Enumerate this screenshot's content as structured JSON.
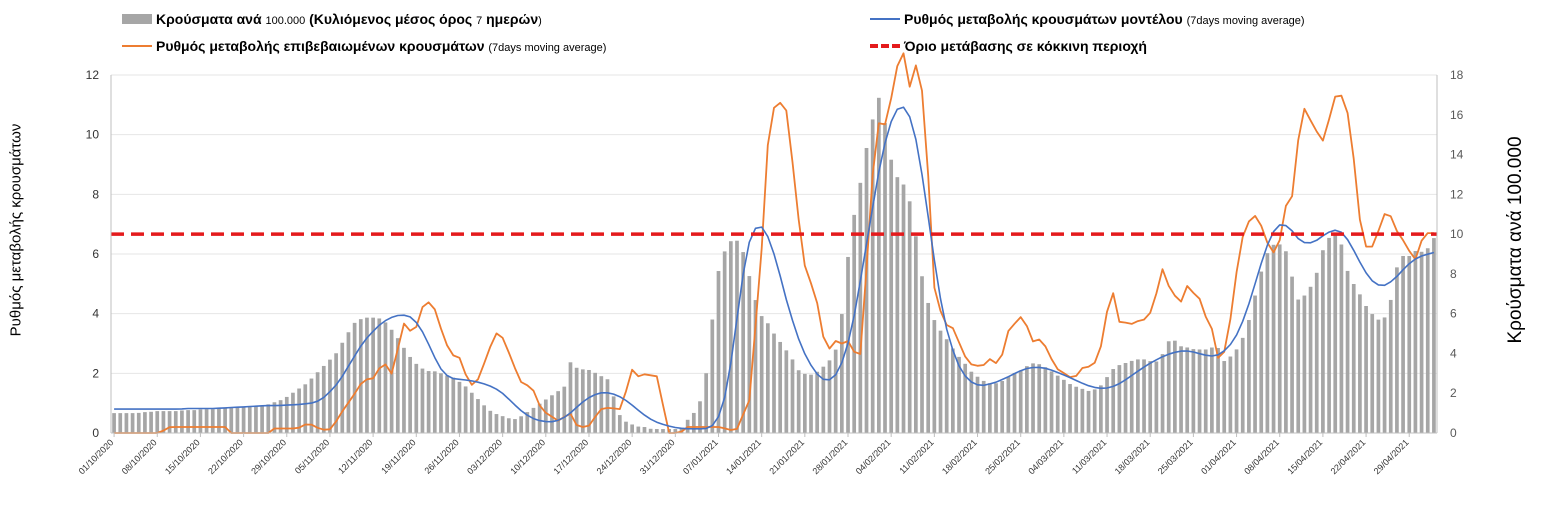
{
  "legend": {
    "bars_main": "Κρούσματα ανά ",
    "bars_small1": "100.000",
    "bars_main2": " (Κυλιόμενος μέσος όρος ",
    "bars_small2": "7",
    "bars_main3": " ημερών",
    "bars_end": ")",
    "model_main": "Ρυθμός μεταβολής κρουσμάτων μοντέλου ",
    "model_small": "(7days moving average)",
    "confirmed_main": "Ρυθμός μεταβολής επιβεβαιωμένων κρουσμάτων ",
    "confirmed_small": "(7days moving average)",
    "threshold": "Όριο μετάβασης σε κόκκινη περιοχή"
  },
  "chart_data": {
    "type": "bar",
    "ylabel": "Ρυθμός μεταβολής κρουσμάτων",
    "y2label": "Κρούσματα ανά 100.000",
    "ylim": [
      0,
      12
    ],
    "y2lim": [
      0,
      18
    ],
    "yticks": [
      "0",
      "2",
      "4",
      "6",
      "8",
      "10",
      "12"
    ],
    "y2ticks": [
      "0",
      "2",
      "4",
      "6",
      "8",
      "10",
      "12",
      "14",
      "16",
      "18"
    ],
    "grid": true,
    "legend_position": "top",
    "colors": {
      "bars": "#a6a6a6",
      "model": "#4472c4",
      "confirmed": "#ed7d31",
      "threshold": "#e41a1c"
    },
    "date_range": [
      "01/10/2020",
      "03/05/2021"
    ],
    "xtick_labels": [
      "01/10/2020",
      "08/10/2020",
      "15/10/2020",
      "22/10/2020",
      "29/10/2020",
      "05/11/2020",
      "12/11/2020",
      "19/11/2020",
      "26/11/2020",
      "03/12/2020",
      "10/12/2020",
      "17/12/2020",
      "24/12/2020",
      "31/12/2020",
      "07/01/2021",
      "14/01/2021",
      "21/01/2021",
      "28/01/2021",
      "04/02/2021",
      "11/02/2021",
      "18/02/2021",
      "25/02/2021",
      "04/03/2021",
      "11/03/2021",
      "18/03/2021",
      "25/03/2021",
      "01/04/2021",
      "08/04/2021",
      "15/04/2021",
      "22/04/2021",
      "29/04/2021"
    ],
    "series": [
      {
        "name": "Κρούσματα ανά 100.000 (Κυλιόμενος μέσος όρος 7 ημερών)",
        "type": "bar",
        "axis": "right",
        "values": [
          1.0,
          1.0,
          1.0,
          1.0,
          1.0,
          1.05,
          1.05,
          1.1,
          1.1,
          1.1,
          1.1,
          1.1,
          1.15,
          1.15,
          1.15,
          1.2,
          1.2,
          1.2,
          1.25,
          1.25,
          1.3,
          1.3,
          1.3,
          1.3,
          1.35,
          1.35,
          1.4,
          1.5,
          1.6,
          1.7,
          1.9,
          2.1,
          2.3,
          2.5,
          2.8,
          3.1,
          3.4,
          3.7,
          4.0,
          4.5,
          5.0,
          5.5,
          5.7,
          5.8,
          5.8,
          5.8,
          5.7,
          5.4,
          5.0,
          4.6,
          4.1,
          3.7,
          3.4,
          3.2,
          3.1,
          3.1,
          3.0,
          2.9,
          2.8,
          2.6,
          2.4,
          2.1,
          1.8,
          1.5,
          1.2,
          1.0,
          0.9,
          0.8,
          0.7,
          0.7,
          0.9,
          1.1,
          1.3,
          1.5,
          1.7,
          1.9,
          2.1,
          2.2,
          3.6,
          3.3,
          3.2,
          3.2,
          3.1,
          2.9,
          2.8,
          2.6,
          1.2,
          0.7,
          0.5,
          0.4,
          0.3,
          0.3,
          0.2,
          0.2,
          0.2,
          0.2,
          0.2,
          0.2,
          0.6,
          0.9,
          1.3,
          2.2,
          4.3,
          7.5,
          8.8,
          9.4,
          9.8,
          9.6,
          8.9,
          7.6,
          6.5,
          5.8,
          5.5,
          5.0,
          4.6,
          4.2,
          3.8,
          3.2,
          3.0,
          2.9,
          3.0,
          3.2,
          3.5,
          3.8,
          4.5,
          6.9,
          9.8,
          11.4,
          12.9,
          14.6,
          15.9,
          16.9,
          15.6,
          13.8,
          12.9,
          12.6,
          12.0,
          10.5,
          8.4,
          6.9,
          6.0,
          5.3,
          5.0,
          4.5,
          4.1,
          3.7,
          3.4,
          3.0,
          2.8,
          2.6,
          2.5,
          2.5,
          2.6,
          2.8,
          3.0,
          3.1,
          3.3,
          3.5,
          3.5,
          3.4,
          3.2,
          3.0,
          2.8,
          2.6,
          2.4,
          2.3,
          2.2,
          2.1,
          2.2,
          2.4,
          2.8,
          3.2,
          3.4,
          3.5,
          3.6,
          3.7,
          3.7,
          3.7,
          3.5,
          3.7,
          4.2,
          4.9,
          4.5,
          4.3,
          4.3,
          4.2,
          4.2,
          4.2,
          4.3,
          4.3,
          3.6,
          3.8,
          4.1,
          4.6,
          5.3,
          6.5,
          7.6,
          8.8,
          9.3,
          9.6,
          9.4,
          9.0,
          7.4,
          6.5,
          7.0,
          7.4,
          8.1,
          9.2,
          9.8,
          10.0,
          9.7,
          8.3,
          7.6,
          7.2,
          6.5,
          6.2,
          5.7,
          5.7,
          5.9,
          7.2,
          8.9,
          8.9,
          8.9,
          9.2,
          9.1,
          9.3,
          9.8
        ]
      },
      {
        "name": "Ρυθμός μεταβολής κρουσμάτων μοντέλου (7days moving average)",
        "type": "line",
        "axis": "left",
        "values": [
          0.8,
          0.8,
          0.8,
          0.8,
          0.8,
          0.8,
          0.8,
          0.8,
          0.8,
          0.8,
          0.8,
          0.8,
          0.8,
          0.82,
          0.82,
          0.82,
          0.82,
          0.82,
          0.82,
          0.83,
          0.84,
          0.85,
          0.86,
          0.87,
          0.88,
          0.89,
          0.9,
          0.91,
          0.92,
          0.92,
          0.92,
          0.93,
          0.94,
          0.95,
          0.96,
          0.98,
          1.0,
          1.05,
          1.15,
          1.3,
          1.5,
          1.7,
          2.0,
          2.3,
          2.6,
          2.9,
          3.15,
          3.35,
          3.55,
          3.7,
          3.82,
          3.9,
          3.95,
          3.95,
          3.9,
          3.75,
          3.5,
          3.15,
          2.75,
          2.35,
          2.05,
          1.9,
          1.82,
          1.8,
          1.78,
          1.76,
          1.72,
          1.68,
          1.62,
          1.55,
          1.45,
          1.32,
          1.15,
          0.97,
          0.8,
          0.65,
          0.53,
          0.45,
          0.4,
          0.38,
          0.38,
          0.42,
          0.5,
          0.62,
          0.78,
          0.95,
          1.1,
          1.22,
          1.3,
          1.35,
          1.35,
          1.32,
          1.25,
          1.15,
          1.02,
          0.88,
          0.72,
          0.58,
          0.46,
          0.37,
          0.3,
          0.25,
          0.2,
          0.17,
          0.15,
          0.14,
          0.14,
          0.14,
          0.15,
          0.2,
          0.4,
          0.8,
          1.6,
          2.8,
          4.2,
          5.5,
          6.4,
          6.85,
          6.95,
          6.75,
          6.3,
          5.7,
          5.0,
          4.3,
          3.7,
          3.15,
          2.7,
          2.35,
          2.05,
          1.85,
          1.75,
          1.8,
          2.0,
          2.4,
          3.0,
          3.8,
          4.8,
          5.9,
          7.0,
          8.1,
          9.1,
          9.9,
          10.5,
          10.85,
          10.95,
          10.75,
          10.2,
          9.3,
          8.1,
          6.8,
          5.5,
          4.4,
          3.5,
          2.85,
          2.35,
          2.0,
          1.78,
          1.65,
          1.6,
          1.6,
          1.65,
          1.7,
          1.78,
          1.86,
          1.95,
          2.05,
          2.12,
          2.18,
          2.2,
          2.2,
          2.17,
          2.12,
          2.05,
          1.98,
          1.9,
          1.82,
          1.73,
          1.65,
          1.58,
          1.53,
          1.5,
          1.5,
          1.53,
          1.6,
          1.7,
          1.82,
          1.95,
          2.08,
          2.2,
          2.32,
          2.42,
          2.52,
          2.6,
          2.67,
          2.72,
          2.75,
          2.75,
          2.72,
          2.67,
          2.62,
          2.58,
          2.58,
          2.65,
          2.8,
          3.0,
          3.3,
          3.7,
          4.2,
          4.8,
          5.4,
          6.0,
          6.5,
          6.85,
          7.0,
          6.95,
          6.8,
          6.55,
          6.4,
          6.35,
          6.4,
          6.5,
          6.65,
          6.75,
          6.8,
          6.75,
          6.55,
          6.25,
          5.9,
          5.55,
          5.25,
          5.05,
          4.95,
          4.95,
          5.05,
          5.2,
          5.4,
          5.6,
          5.75,
          5.88,
          5.95,
          6.0,
          6.05
        ]
      },
      {
        "name": "Ρυθμός μεταβολής επιβεβαιωμένων κρουσμάτων (7days moving average)",
        "type": "line",
        "axis": "left",
        "values": [
          0.0,
          0.0,
          0.0,
          0.0,
          0.0,
          0.0,
          0.0,
          0.0,
          0.0,
          0.0,
          0.0,
          0.15,
          0.2,
          0.2,
          0.2,
          0.2,
          0.2,
          0.2,
          0.2,
          0.2,
          0.2,
          0.2,
          0.2,
          0.2,
          0.2,
          0.0,
          0.0,
          0.0,
          0.0,
          0.0,
          0.0,
          0.0,
          0.0,
          0.0,
          0.15,
          0.15,
          0.15,
          0.15,
          0.15,
          0.15,
          0.2,
          0.3,
          0.3,
          0.2,
          0.15,
          0.1,
          0.1,
          0.3,
          0.5,
          0.8,
          1.0,
          1.2,
          1.5,
          1.7,
          1.8,
          1.8,
          1.9,
          2.3,
          2.3,
          1.9,
          2.2,
          3.2,
          3.7,
          3.4,
          3.5,
          3.6,
          4.3,
          4.4,
          4.3,
          4.0,
          3.4,
          3.0,
          2.6,
          2.6,
          2.5,
          2.0,
          1.7,
          1.5,
          1.9,
          2.3,
          2.7,
          3.2,
          3.4,
          3.2,
          2.8,
          2.5,
          2.0,
          1.7,
          1.6,
          1.6,
          1.3,
          0.9,
          0.7,
          0.6,
          0.5,
          0.4,
          0.5,
          0.7,
          0.6,
          0.2,
          0.2,
          0.2,
          0.3,
          0.6,
          0.8,
          0.8,
          0.9,
          0.8,
          0.8,
          0.8,
          2.4,
          2.0,
          1.9,
          1.95,
          2.0,
          1.9,
          1.9,
          1.3,
          0.0,
          0.0,
          0.0,
          0.0,
          0.2,
          0.2,
          0.2,
          0.2,
          0.2,
          0.2,
          0.2,
          0.2,
          0.2,
          0.1,
          0.1,
          0.1,
          0.5,
          0.8,
          1.2,
          3.5,
          5.5,
          7.4,
          10.7,
          10.9,
          11.1,
          11.0,
          10.7,
          9.0,
          7.5,
          6.2,
          5.2,
          5.0,
          4.6,
          3.5,
          3.0,
          2.8,
          3.1,
          3.0,
          3.0,
          3.1,
          2.8,
          2.2,
          3.2,
          6.2,
          8.5,
          10.5,
          10.2,
          10.4,
          11.2,
          11.8,
          13.2,
          12.5,
          11.6,
          12.2,
          12.6,
          10.8,
          8.5,
          5.0,
          4.5,
          3.8,
          3.6,
          3.6,
          3.2,
          2.9,
          2.5,
          2.3,
          2.3,
          2.2,
          2.3,
          2.5,
          2.3,
          2.4,
          2.7,
          3.4,
          3.7,
          3.6,
          4.0,
          3.6,
          3.0,
          3.2,
          3.1,
          2.9,
          2.6,
          2.2,
          2.1,
          2.0,
          1.9,
          1.8,
          2.0,
          2.2,
          2.2,
          2.3,
          2.4,
          3.0,
          4.0,
          4.4,
          5.0,
          3.4,
          3.7,
          3.7,
          3.6,
          3.8,
          3.8,
          3.8,
          4.4,
          4.8,
          5.5,
          5.0,
          4.8,
          4.5,
          4.4,
          4.9,
          5.0,
          4.5,
          4.5,
          4.0,
          3.6,
          3.4,
          2.4,
          2.6,
          3.2,
          4.4,
          5.6,
          6.5,
          7.0,
          7.2,
          7.3,
          7.0,
          6.5,
          6.2,
          6.0,
          6.4,
          7.5,
          7.8,
          8.0,
          9.8,
          10.9,
          10.8,
          10.3,
          10.1,
          9.8,
          9.8,
          11.0,
          11.3,
          11.4,
          11.0,
          10.5,
          9.0,
          7.3,
          6.5,
          6.0,
          6.3,
          6.7,
          7.2,
          7.5,
          7.2,
          6.8,
          6.5,
          6.4,
          6.0,
          5.8,
          6.3,
          6.7,
          6.7,
          6.7
        ]
      },
      {
        "name": "Όριο μετάβασης σε κόκκινη περιοχή",
        "type": "line",
        "axis": "left",
        "values": [
          6.667
        ]
      }
    ]
  }
}
